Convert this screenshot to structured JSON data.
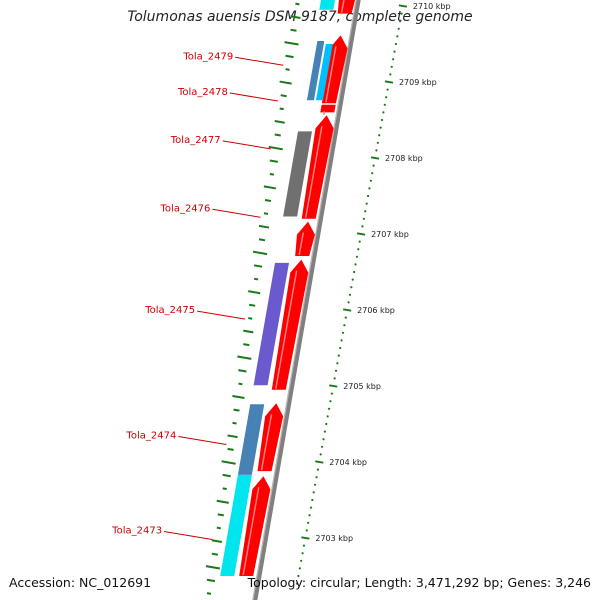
{
  "title": "Tolumonas auensis DSM 9187, complete genome",
  "accession": "Accession: NC_012691",
  "summary": "Topology: circular; Length: 3,471,292 bp; Genes: 3,246",
  "colors": {
    "cds": "#ff0000",
    "backbone": "#808080",
    "ticks": "#1a7a1a",
    "label": "#cc0000",
    "cyan": "#00e5ee",
    "steelblue": "#4682b4",
    "deepskyblue": "#00bfff",
    "gray": "#707070",
    "slateblue": "#6a5acd"
  },
  "scale": [
    {
      "label": "2710 kbp",
      "kbp": 2710
    },
    {
      "label": "2709 kbp",
      "kbp": 2709
    },
    {
      "label": "2708 kbp",
      "kbp": 2708
    },
    {
      "label": "2707 kbp",
      "kbp": 2707
    },
    {
      "label": "2706 kbp",
      "kbp": 2706
    },
    {
      "label": "2705 kbp",
      "kbp": 2705
    },
    {
      "label": "2704 kbp",
      "kbp": 2704
    },
    {
      "label": "2703 kbp",
      "kbp": 2703
    }
  ],
  "gene_labels": [
    {
      "label": "Tola_2479",
      "kbp": 2709.22
    },
    {
      "label": "Tola_2478",
      "kbp": 2708.75
    },
    {
      "label": "Tola_2477",
      "kbp": 2708.12
    },
    {
      "label": "Tola_2476",
      "kbp": 2707.22
    },
    {
      "label": "Tola_2475",
      "kbp": 2705.88
    },
    {
      "label": "Tola_2474",
      "kbp": 2704.23
    },
    {
      "label": "Tola_2473",
      "kbp": 2702.98
    }
  ],
  "cds_features": [
    {
      "start_kbp": 2709.9,
      "end_kbp": 2710.4
    },
    {
      "start_kbp": 2708.72,
      "end_kbp": 2709.6
    },
    {
      "start_kbp": 2708.6,
      "end_kbp": 2708.7
    },
    {
      "start_kbp": 2707.2,
      "end_kbp": 2708.55
    },
    {
      "start_kbp": 2706.71,
      "end_kbp": 2707.15
    },
    {
      "start_kbp": 2704.95,
      "end_kbp": 2706.65
    },
    {
      "start_kbp": 2703.88,
      "end_kbp": 2704.76
    },
    {
      "start_kbp": 2702.5,
      "end_kbp": 2703.8
    }
  ],
  "cog_features": [
    {
      "start_kbp": 2709.95,
      "end_kbp": 2710.4,
      "color": "#00e5ee"
    },
    {
      "start_kbp": 2708.76,
      "end_kbp": 2709.54,
      "color": "#4682b4"
    },
    {
      "start_kbp": 2708.76,
      "end_kbp": 2709.5,
      "color": "#00bfff"
    },
    {
      "start_kbp": 2707.23,
      "end_kbp": 2708.35,
      "color": "#707070"
    },
    {
      "start_kbp": 2705.01,
      "end_kbp": 2706.62,
      "color": "#6a5acd"
    },
    {
      "start_kbp": 2703.83,
      "end_kbp": 2704.76,
      "color": "#4682b4"
    },
    {
      "start_kbp": 2702.5,
      "end_kbp": 2703.83,
      "color": "#00e5ee"
    }
  ]
}
